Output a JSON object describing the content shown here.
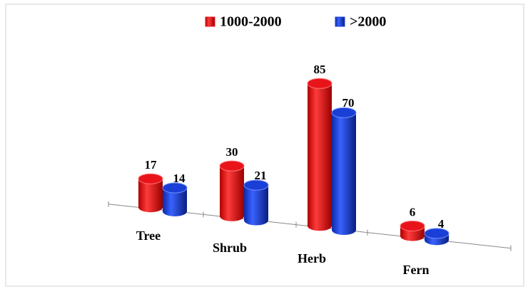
{
  "chart_data": {
    "type": "bar",
    "categories": [
      "Tree",
      "Shrub",
      "Herb",
      "Fern"
    ],
    "series": [
      {
        "name": "1000-2000",
        "color": "#e8141a",
        "values": [
          17,
          30,
          85,
          6
        ]
      },
      {
        "name": ">2000",
        "color": "#1a3fd6",
        "values": [
          14,
          21,
          70,
          4
        ]
      }
    ],
    "legend": "top"
  }
}
